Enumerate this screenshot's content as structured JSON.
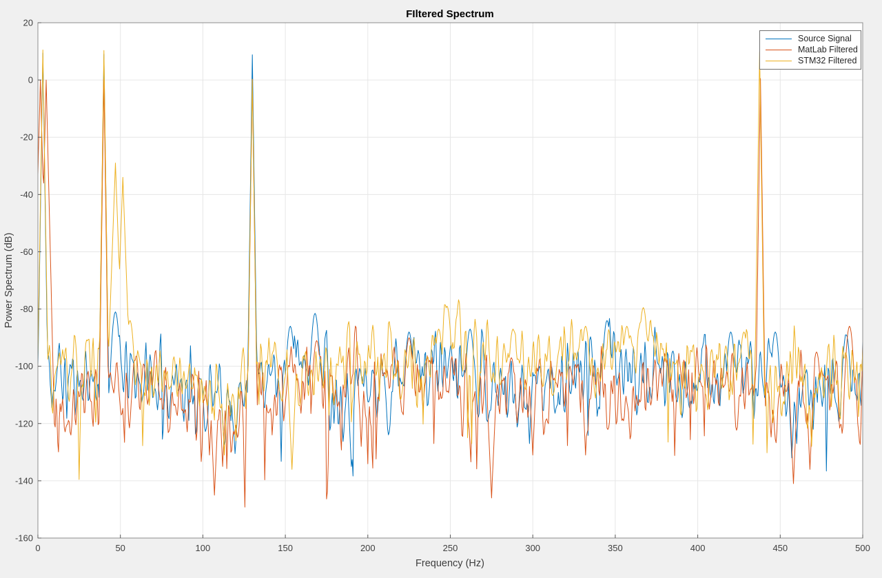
{
  "figure": {
    "background": "#f0f0f0",
    "plot_background": "#ffffff",
    "grid_color": "#e6e6e6",
    "axis_box_color": "#8c8c8c",
    "tick_color": "#5a5a5a",
    "tick_label_color": "#404040",
    "title_color": "#000000"
  },
  "chart_data": {
    "type": "line",
    "title": "FIltered Spectrum",
    "xlabel": "Frequency (Hz)",
    "ylabel": "Power Spectrum (dB)",
    "xlim": [
      0,
      500
    ],
    "ylim": [
      -160,
      20
    ],
    "xticks": [
      0,
      50,
      100,
      150,
      200,
      250,
      300,
      350,
      400,
      450,
      500
    ],
    "yticks": [
      20,
      0,
      -20,
      -40,
      -60,
      -80,
      -100,
      -120,
      -140,
      -160
    ],
    "grid": true,
    "legend_position": "top-right",
    "noise_model": {
      "step_hz": 0.5,
      "smooth_passes": 2,
      "amplitude_gain": 2.0,
      "dip_probability": 0.022,
      "dip_depth_min": 9,
      "dip_depth_max": 30,
      "bump_curvature": 2.2,
      "dip_slope": 13,
      "floor_clamp": -158
    },
    "series": [
      {
        "name": "Source Signal",
        "color": "#0072BD",
        "seed": 11,
        "noise_regions": [
          [
            0,
            8,
            -100,
            10
          ],
          [
            8,
            95,
            -104,
            12
          ],
          [
            95,
            126,
            -112,
            11
          ],
          [
            126,
            150,
            -106,
            10
          ],
          [
            150,
            175,
            -98,
            11
          ],
          [
            175,
            215,
            -106,
            12
          ],
          [
            215,
            270,
            -100,
            11
          ],
          [
            270,
            315,
            -107,
            11
          ],
          [
            315,
            355,
            -101,
            12
          ],
          [
            355,
            435,
            -103,
            11
          ],
          [
            435,
            500,
            -106,
            12
          ]
        ],
        "peaks": [
          [
            3,
            9.4,
            38
          ],
          [
            40,
            9,
            40
          ],
          [
            130,
            8.8,
            40
          ]
        ],
        "bumps": [
          [
            47,
            -81
          ],
          [
            153,
            -86
          ],
          [
            168,
            -81.5
          ],
          [
            225,
            -88
          ],
          [
            262,
            -87
          ],
          [
            345,
            -84
          ],
          [
            420,
            -88
          ],
          [
            447,
            -88
          ],
          [
            490,
            -89
          ]
        ],
        "dips": [
          [
            101,
            -121
          ],
          [
            117,
            -119
          ],
          [
            190,
            -135
          ],
          [
            298,
            -127
          ],
          [
            457,
            -132
          ],
          [
            460,
            -127
          ],
          [
            470,
            -122
          ]
        ]
      },
      {
        "name": "MatLab Filtered",
        "color": "#D95319",
        "seed": 22,
        "noise_regions": [
          [
            0,
            8,
            -104,
            10
          ],
          [
            8,
            95,
            -108,
            12
          ],
          [
            95,
            126,
            -117,
            12
          ],
          [
            126,
            150,
            -110,
            11
          ],
          [
            150,
            200,
            -107,
            12
          ],
          [
            200,
            245,
            -104,
            11
          ],
          [
            245,
            310,
            -110,
            12
          ],
          [
            310,
            360,
            -108,
            12
          ],
          [
            360,
            435,
            -108,
            11
          ],
          [
            435,
            500,
            -110,
            12
          ]
        ],
        "peaks": [
          [
            1.5,
            0,
            22
          ],
          [
            5,
            0,
            24
          ],
          [
            40,
            0.2,
            40
          ],
          [
            130,
            0.3,
            40
          ],
          [
            438,
            0.5,
            40
          ]
        ],
        "bumps": [
          [
            169,
            -91
          ],
          [
            225,
            -90
          ],
          [
            287,
            -97
          ],
          [
            472,
            -95
          ],
          [
            492,
            -86
          ]
        ],
        "dips": [
          [
            104,
            -131
          ],
          [
            107,
            -145
          ],
          [
            112,
            -135
          ],
          [
            142,
            -124
          ],
          [
            196,
            -128
          ],
          [
            275,
            -146
          ],
          [
            300,
            -131
          ],
          [
            332,
            -131
          ],
          [
            458,
            -141
          ],
          [
            468,
            -136
          ]
        ]
      },
      {
        "name": "STM32 Filtered",
        "color": "#EDB120",
        "seed": 33,
        "noise_regions": [
          [
            0,
            8,
            -102,
            10
          ],
          [
            8,
            38,
            -104,
            11
          ],
          [
            38,
            58,
            -97,
            9
          ],
          [
            58,
            95,
            -103,
            11
          ],
          [
            95,
            126,
            -108,
            11
          ],
          [
            126,
            150,
            -102,
            10
          ],
          [
            150,
            200,
            -101,
            10
          ],
          [
            200,
            238,
            -100,
            11
          ],
          [
            238,
            260,
            -93,
            10
          ],
          [
            260,
            310,
            -96,
            9
          ],
          [
            310,
            345,
            -98,
            11
          ],
          [
            345,
            375,
            -92,
            9
          ],
          [
            375,
            435,
            -100,
            11
          ],
          [
            435,
            500,
            -104,
            12
          ]
        ],
        "peaks": [
          [
            3,
            10.5,
            36
          ],
          [
            40,
            10.3,
            40
          ],
          [
            47,
            -29,
            16
          ],
          [
            51.5,
            -34,
            16
          ],
          [
            130,
            0.2,
            40
          ],
          [
            437.5,
            10,
            40
          ]
        ],
        "bumps": [
          [
            55.8,
            -84
          ],
          [
            243,
            -87
          ],
          [
            248,
            -79
          ],
          [
            288,
            -87
          ],
          [
            332,
            -86
          ],
          [
            357,
            -86
          ],
          [
            367,
            -79.5
          ],
          [
            428,
            -88
          ]
        ],
        "dips": [
          [
            113,
            -131
          ],
          [
            120,
            -126
          ],
          [
            154,
            -136
          ],
          [
            469,
            -128
          ]
        ]
      }
    ]
  }
}
